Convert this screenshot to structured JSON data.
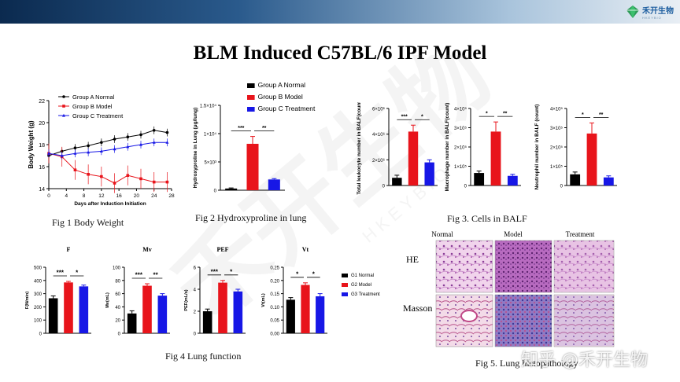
{
  "header": {
    "logo_text": "禾开生物",
    "logo_sub": "HKEYBIO"
  },
  "slide": {
    "title": "BLM Induced C57BL/6 IPF Model"
  },
  "captions": {
    "fig1": "Fig 1 Body Weight",
    "fig2": "Fig 2 Hydroxyproline in lung",
    "fig3": "Fig 3. Cells in BALF",
    "fig4": "Fig 4 Lung function",
    "fig5": "Fig 5. Lung histopathology"
  },
  "watermark": {
    "zhihu": "知乎 @禾开生物",
    "big": "禾开生物",
    "sub": "HKEYBIO"
  },
  "colors": {
    "normal": "#000000",
    "model": "#e8141b",
    "treatment": "#1717e6"
  },
  "chart_data": [
    {
      "id": "fig1",
      "type": "line",
      "xlabel": "Days after Induction Initiation",
      "ylabel": "Body Weight (g)",
      "xlim": [
        0,
        28
      ],
      "ylim": [
        14,
        22
      ],
      "xticks": [
        0,
        4,
        8,
        12,
        16,
        20,
        24,
        28
      ],
      "yticks": [
        14,
        16,
        18,
        20,
        22
      ],
      "x": [
        0,
        3,
        6,
        9,
        12,
        15,
        18,
        21,
        24,
        27
      ],
      "series": [
        {
          "name": "Group A Normal",
          "values": [
            17.0,
            17.4,
            17.7,
            17.9,
            18.2,
            18.5,
            18.7,
            18.9,
            19.3,
            19.1
          ]
        },
        {
          "name": "Group B Model",
          "values": [
            17.2,
            16.9,
            15.7,
            15.3,
            15.1,
            14.5,
            15.2,
            14.9,
            14.6,
            14.6
          ]
        },
        {
          "name": "Group C Treatment",
          "values": [
            17.2,
            17.0,
            17.2,
            17.3,
            17.4,
            17.6,
            17.8,
            18.0,
            18.2,
            18.2
          ]
        }
      ]
    },
    {
      "id": "fig2",
      "type": "bar",
      "ylabel": "Hydroxyproline in Lung (μg/lung)",
      "ylim": [
        0,
        15000
      ],
      "yticks": [
        "0",
        "5×10³",
        "1×10⁴",
        "1.5×10⁴"
      ],
      "legend": [
        "Group A Normal",
        "Group B Model",
        "Group C Treatment"
      ],
      "values": [
        300,
        8200,
        1900
      ],
      "errors": [
        100,
        1300,
        150
      ],
      "sig": [
        "***",
        "**"
      ]
    },
    {
      "id": "fig3a",
      "type": "bar",
      "ylabel": "Total leukocyte number in BALF(count)",
      "ylim": [
        0,
        6000000
      ],
      "yticks": [
        "0",
        "2×10⁶",
        "4×10⁶",
        "6×10⁶"
      ],
      "values": [
        600000,
        4200000,
        1800000
      ],
      "errors": [
        200000,
        500000,
        200000
      ],
      "sig": [
        "***",
        "*"
      ]
    },
    {
      "id": "fig3b",
      "type": "bar",
      "ylabel": "Macrophage number in BALF(count)",
      "ylim": [
        0,
        400000
      ],
      "yticks": [
        "0",
        "1×10⁵",
        "2×10⁵",
        "3×10⁵",
        "4×10⁵"
      ],
      "values": [
        65000,
        280000,
        50000
      ],
      "errors": [
        10000,
        50000,
        8000
      ],
      "sig": [
        "*",
        "**"
      ]
    },
    {
      "id": "fig3c",
      "type": "bar",
      "ylabel": "Neutrophil number in BALF (count)",
      "ylim": [
        0,
        400000
      ],
      "yticks": [
        "0",
        "1×10⁵",
        "2×10⁵",
        "3×10⁵",
        "4×10⁵"
      ],
      "values": [
        58000,
        270000,
        42000
      ],
      "errors": [
        12000,
        55000,
        8000
      ],
      "sig": [
        "*",
        "**"
      ]
    },
    {
      "id": "fig4a",
      "type": "bar",
      "title": "F",
      "ylabel": "F(N/min)",
      "ylim": [
        0,
        500
      ],
      "yticks": [
        "0",
        "100",
        "200",
        "300",
        "400",
        "500"
      ],
      "values": [
        265,
        385,
        355
      ],
      "errors": [
        18,
        8,
        10
      ],
      "sig": [
        "***",
        "*"
      ]
    },
    {
      "id": "fig4b",
      "type": "bar",
      "title": "Mv",
      "ylabel": "Mv(mL)",
      "ylim": [
        0,
        100
      ],
      "yticks": [
        "0",
        "20",
        "40",
        "60",
        "80",
        "100"
      ],
      "values": [
        30,
        72,
        57
      ],
      "errors": [
        4,
        3,
        3
      ],
      "sig": [
        "***",
        "**"
      ]
    },
    {
      "id": "fig4c",
      "type": "bar",
      "title": "PEF",
      "ylabel": "PEF(mL/s)",
      "ylim": [
        0,
        6
      ],
      "yticks": [
        "0",
        "2",
        "4",
        "6"
      ],
      "values": [
        2.0,
        4.6,
        3.8
      ],
      "errors": [
        0.2,
        0.2,
        0.2
      ],
      "sig": [
        "***",
        "*"
      ]
    },
    {
      "id": "fig4d",
      "type": "bar",
      "title": "Vt",
      "ylabel": "Vt(mL)",
      "ylim": [
        0,
        0.25
      ],
      "yticks": [
        "0.00",
        "0.05",
        "0.10",
        "0.15",
        "0.20",
        "0.25"
      ],
      "values": [
        0.127,
        0.183,
        0.14
      ],
      "errors": [
        0.008,
        0.008,
        0.01
      ],
      "sig": [
        "*",
        "*"
      ],
      "legend": [
        "G1 Normal",
        "G2 Model",
        "G3 Treatment"
      ]
    }
  ],
  "histology": {
    "columns": [
      "Normal",
      "Model",
      "Treatment"
    ],
    "rows": [
      "HE",
      "Masson"
    ]
  }
}
